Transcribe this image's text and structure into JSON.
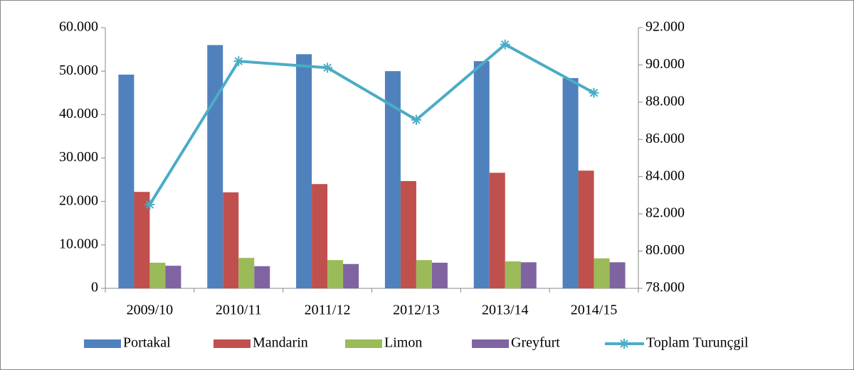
{
  "chart_data": {
    "type": "bar-line",
    "categories": [
      "2009/10",
      "2010/11",
      "2011/12",
      "2012/13",
      "2013/14",
      "2014/15"
    ],
    "series": [
      {
        "name": "Portakal",
        "color": "#4f81bd",
        "values": [
          49200,
          56000,
          53900,
          50000,
          52300,
          48400
        ]
      },
      {
        "name": "Mandarin",
        "color": "#c0504d",
        "values": [
          22200,
          22100,
          24000,
          24700,
          26600,
          27100
        ]
      },
      {
        "name": "Limon",
        "color": "#9bbb59",
        "values": [
          5900,
          7000,
          6500,
          6500,
          6200,
          6900
        ]
      },
      {
        "name": "Greyfurt",
        "color": "#8064a2",
        "values": [
          5200,
          5100,
          5600,
          5900,
          6000,
          6000
        ]
      },
      {
        "name": "Toplam Turunçgil",
        "color": "#4bacc6",
        "type": "line",
        "axis": "y2",
        "values": [
          82500,
          90200,
          89850,
          87050,
          91100,
          88500
        ]
      }
    ],
    "ylim": [
      0,
      60000
    ],
    "yticks": [
      0,
      {
        "value": 10000,
        "label": "10.000"
      },
      {
        "value": 20000,
        "label": "20.000"
      },
      {
        "value": 30000,
        "label": "30.000"
      },
      {
        "value": 40000,
        "label": "40.000"
      },
      {
        "value": 50000,
        "label": "50.000"
      },
      {
        "value": 60000,
        "label": "60.000"
      }
    ],
    "y2lim": [
      78000,
      92000
    ],
    "y2ticks": [
      {
        "value": 78000,
        "label": "78.000"
      },
      {
        "value": 80000,
        "label": "80.000"
      },
      {
        "value": 82000,
        "label": "82.000"
      },
      {
        "value": 84000,
        "label": "84.000"
      },
      {
        "value": 86000,
        "label": "86.000"
      },
      {
        "value": 88000,
        "label": "88.000"
      },
      {
        "value": 90000,
        "label": "90.000"
      },
      {
        "value": 92000,
        "label": "92.000"
      }
    ],
    "legend": "bottom",
    "grid": false
  }
}
